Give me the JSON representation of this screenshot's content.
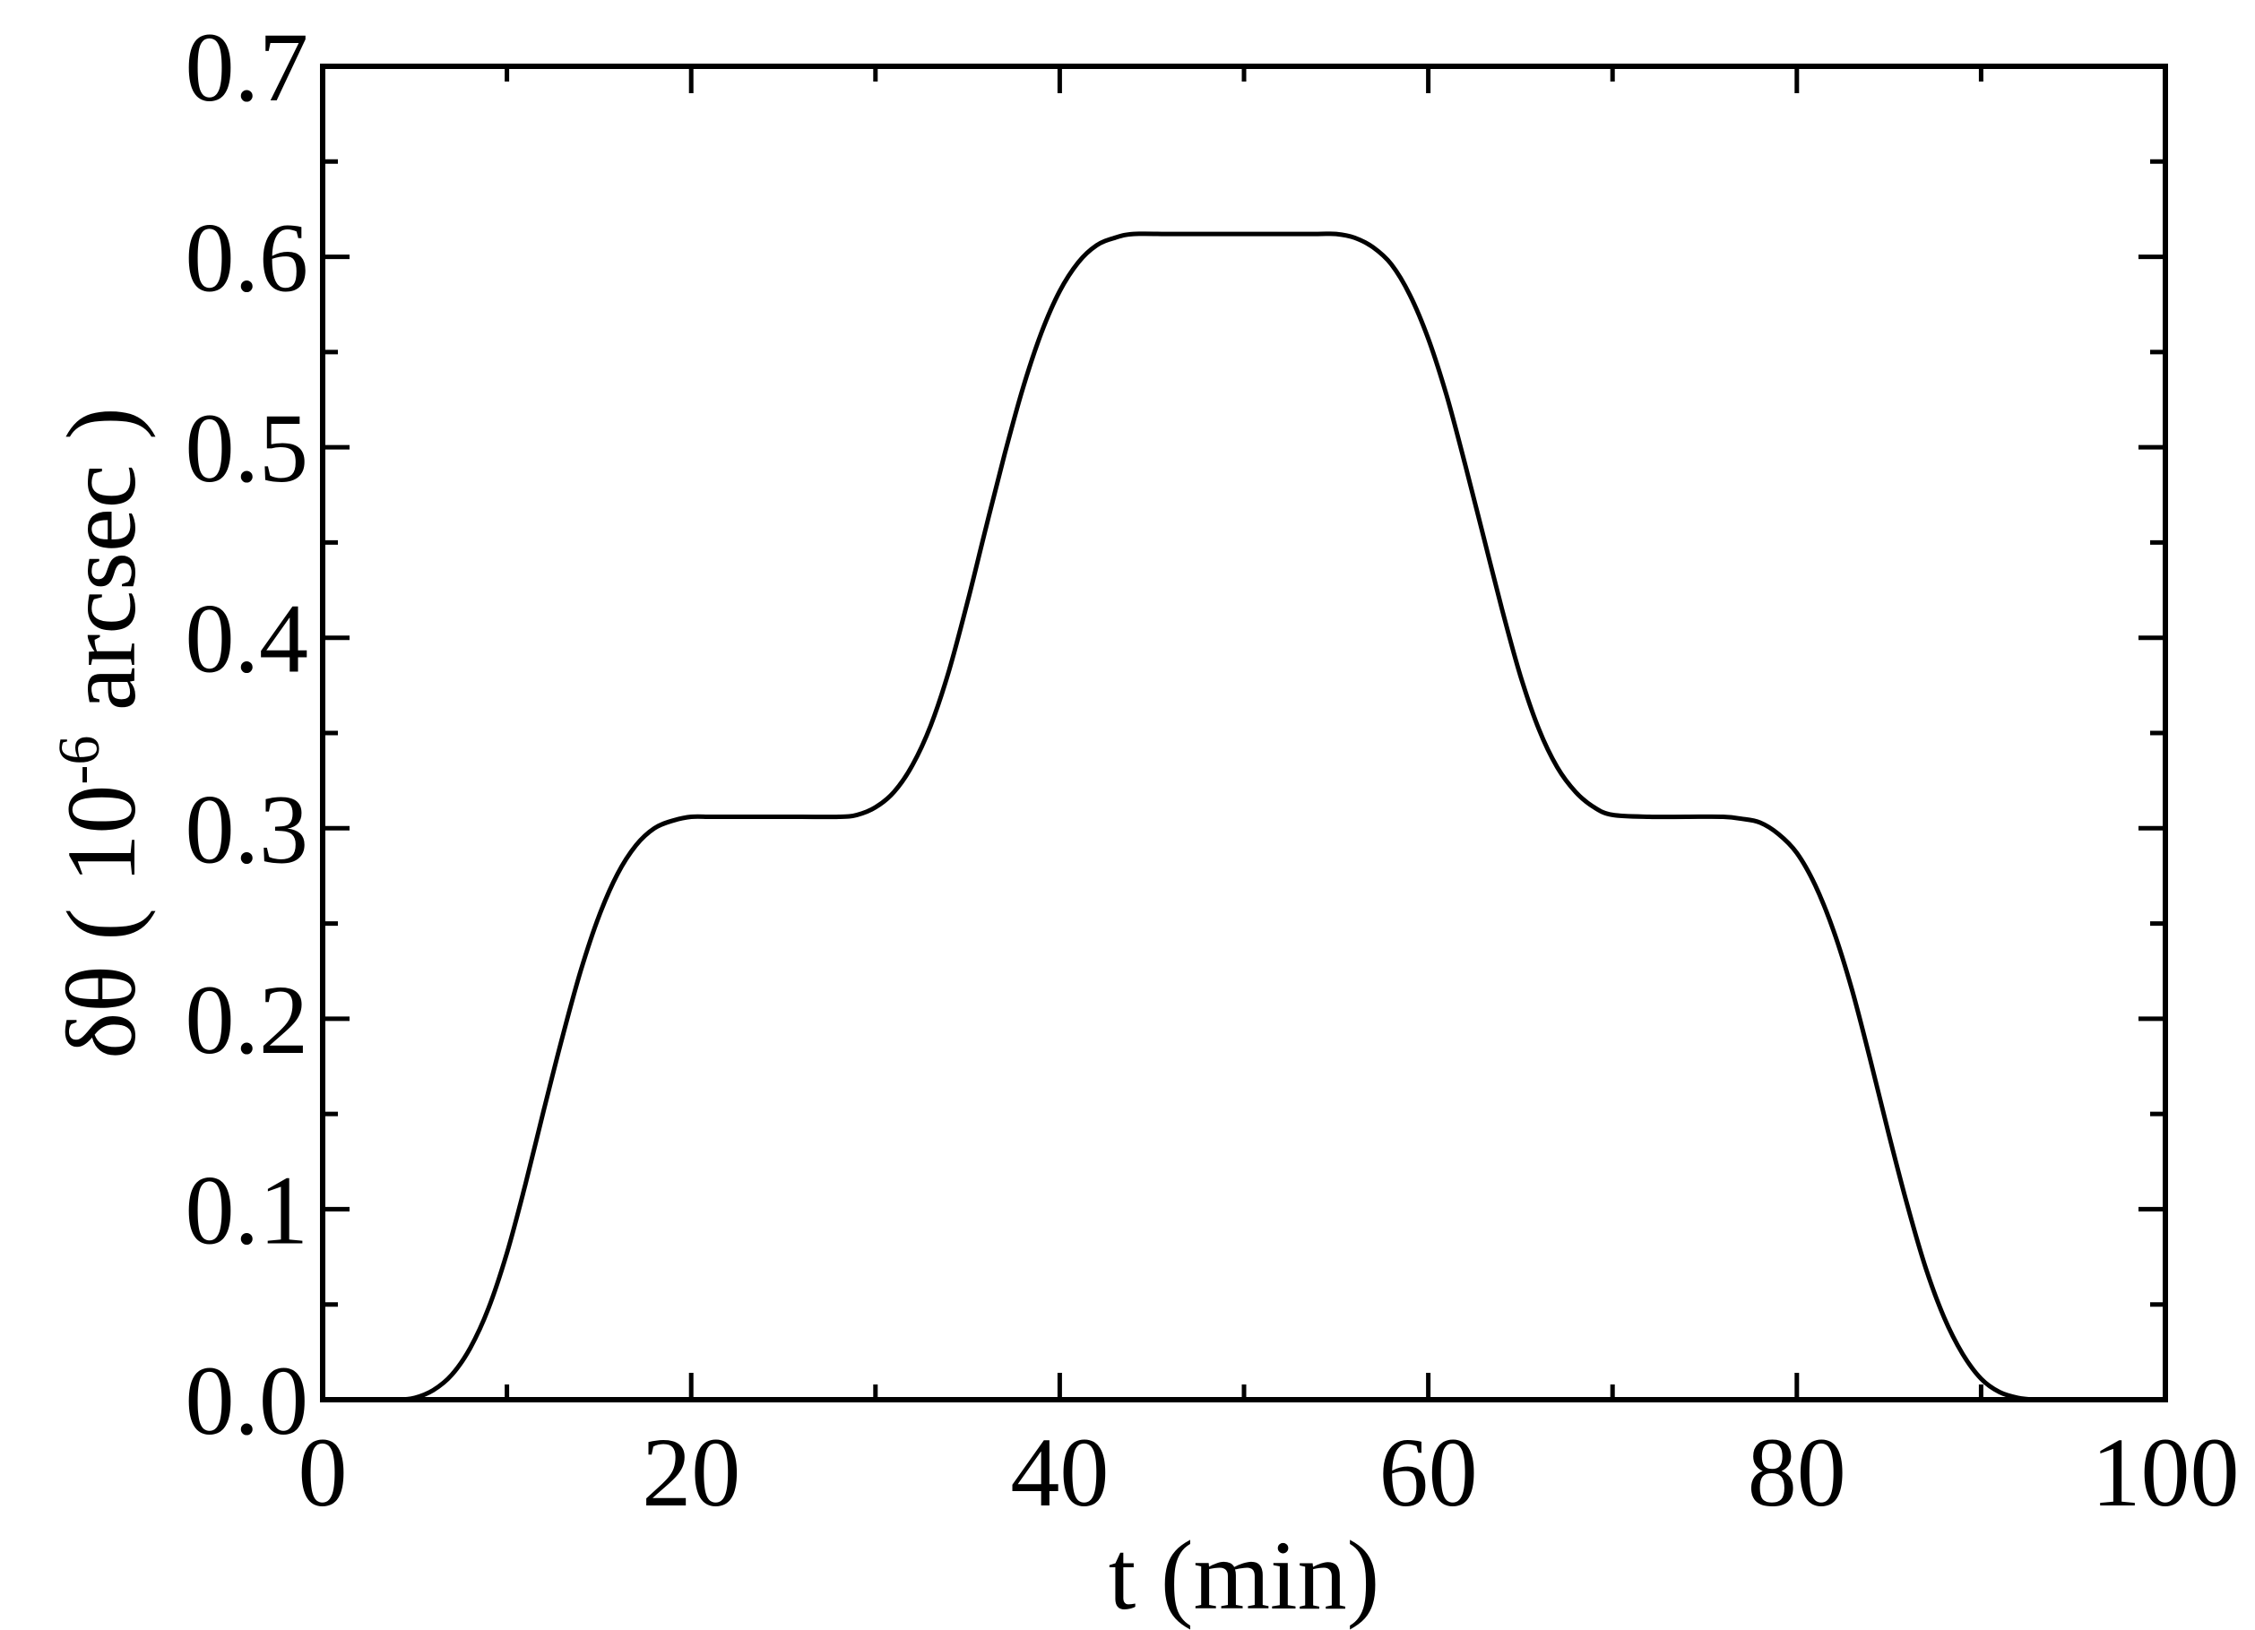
{
  "chart_data": {
    "type": "line",
    "xlabel": "t (min)",
    "ylabel": {
      "prefix": "δθ ( 10",
      "exponent": "-6",
      "suffix": " arcsec )"
    },
    "xlim": [
      0,
      100
    ],
    "ylim": [
      0.0,
      0.7
    ],
    "x_ticks": [
      {
        "value": 0,
        "label": "0"
      },
      {
        "value": 20,
        "label": "20"
      },
      {
        "value": 40,
        "label": "40"
      },
      {
        "value": 60,
        "label": "60"
      },
      {
        "value": 80,
        "label": "80"
      },
      {
        "value": 100,
        "label": "100"
      }
    ],
    "y_ticks": [
      {
        "value": 0.0,
        "label": "0.0"
      },
      {
        "value": 0.1,
        "label": "0.1"
      },
      {
        "value": 0.2,
        "label": "0.2"
      },
      {
        "value": 0.3,
        "label": "0.3"
      },
      {
        "value": 0.4,
        "label": "0.4"
      },
      {
        "value": 0.5,
        "label": "0.5"
      },
      {
        "value": 0.6,
        "label": "0.6"
      },
      {
        "value": 0.7,
        "label": "0.7"
      }
    ],
    "x_minor_step": 10,
    "y_minor_step": 0.05,
    "grid": false,
    "legend": "none",
    "line_color": "#000000",
    "series": [
      {
        "x": [
          0,
          2,
          4,
          5,
          6,
          7,
          8,
          9,
          10,
          11,
          12,
          13,
          14,
          15,
          16,
          17,
          18,
          19,
          20,
          21,
          22,
          24,
          26,
          28,
          29,
          30,
          31,
          32,
          33,
          34,
          35,
          36,
          37,
          38,
          39,
          40,
          41,
          42,
          43,
          44,
          46,
          48,
          50,
          52,
          54,
          55,
          56,
          57,
          58,
          59,
          60,
          61,
          62,
          63,
          64,
          65,
          66,
          67,
          68,
          69,
          70,
          72,
          74,
          76,
          77,
          78,
          79,
          80,
          81,
          82,
          83,
          84,
          85,
          86,
          87,
          88,
          89,
          90,
          91,
          92,
          93,
          94,
          96,
          98,
          100
        ],
        "y": [
          0.0,
          0.0,
          0.0,
          0.001,
          0.005,
          0.013,
          0.027,
          0.048,
          0.077,
          0.113,
          0.152,
          0.19,
          0.225,
          0.254,
          0.276,
          0.291,
          0.3,
          0.304,
          0.306,
          0.306,
          0.306,
          0.306,
          0.306,
          0.306,
          0.307,
          0.311,
          0.319,
          0.333,
          0.354,
          0.383,
          0.419,
          0.458,
          0.496,
          0.531,
          0.56,
          0.582,
          0.597,
          0.606,
          0.61,
          0.612,
          0.612,
          0.612,
          0.612,
          0.612,
          0.612,
          0.612,
          0.61,
          0.605,
          0.596,
          0.58,
          0.557,
          0.527,
          0.491,
          0.453,
          0.415,
          0.38,
          0.352,
          0.332,
          0.319,
          0.311,
          0.307,
          0.306,
          0.306,
          0.306,
          0.305,
          0.303,
          0.297,
          0.287,
          0.27,
          0.246,
          0.215,
          0.178,
          0.139,
          0.102,
          0.069,
          0.043,
          0.024,
          0.011,
          0.004,
          0.001,
          0.0,
          0.0,
          0.0,
          0.0,
          0.0
        ]
      }
    ]
  }
}
